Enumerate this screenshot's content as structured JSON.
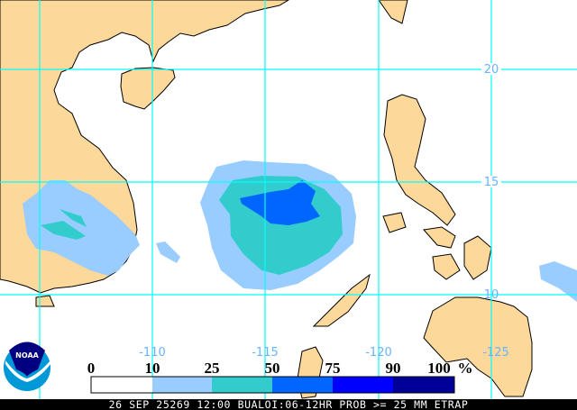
{
  "map": {
    "latitude_labels": [
      "20",
      "15",
      "10"
    ],
    "longitude_labels": [
      "-110",
      "-115",
      "-120",
      "-125"
    ],
    "colors": {
      "land": "#fcd99a",
      "water": "#ffffff",
      "grid": "#00ffff",
      "border": "#000000"
    }
  },
  "legend": {
    "tick_labels": [
      "0",
      "10",
      "25",
      "50",
      "75",
      "90",
      "100"
    ],
    "unit": "%",
    "colors": [
      "#ffffff",
      "#99ccff",
      "#33cccc",
      "#0066ff",
      "#0000ff",
      "#000099"
    ]
  },
  "logo": {
    "text": "NOAA"
  },
  "footer": {
    "caption": "26 SEP 25269 12:00 BUALOI:06-12HR PROB >= 25 MM ETRAP"
  }
}
